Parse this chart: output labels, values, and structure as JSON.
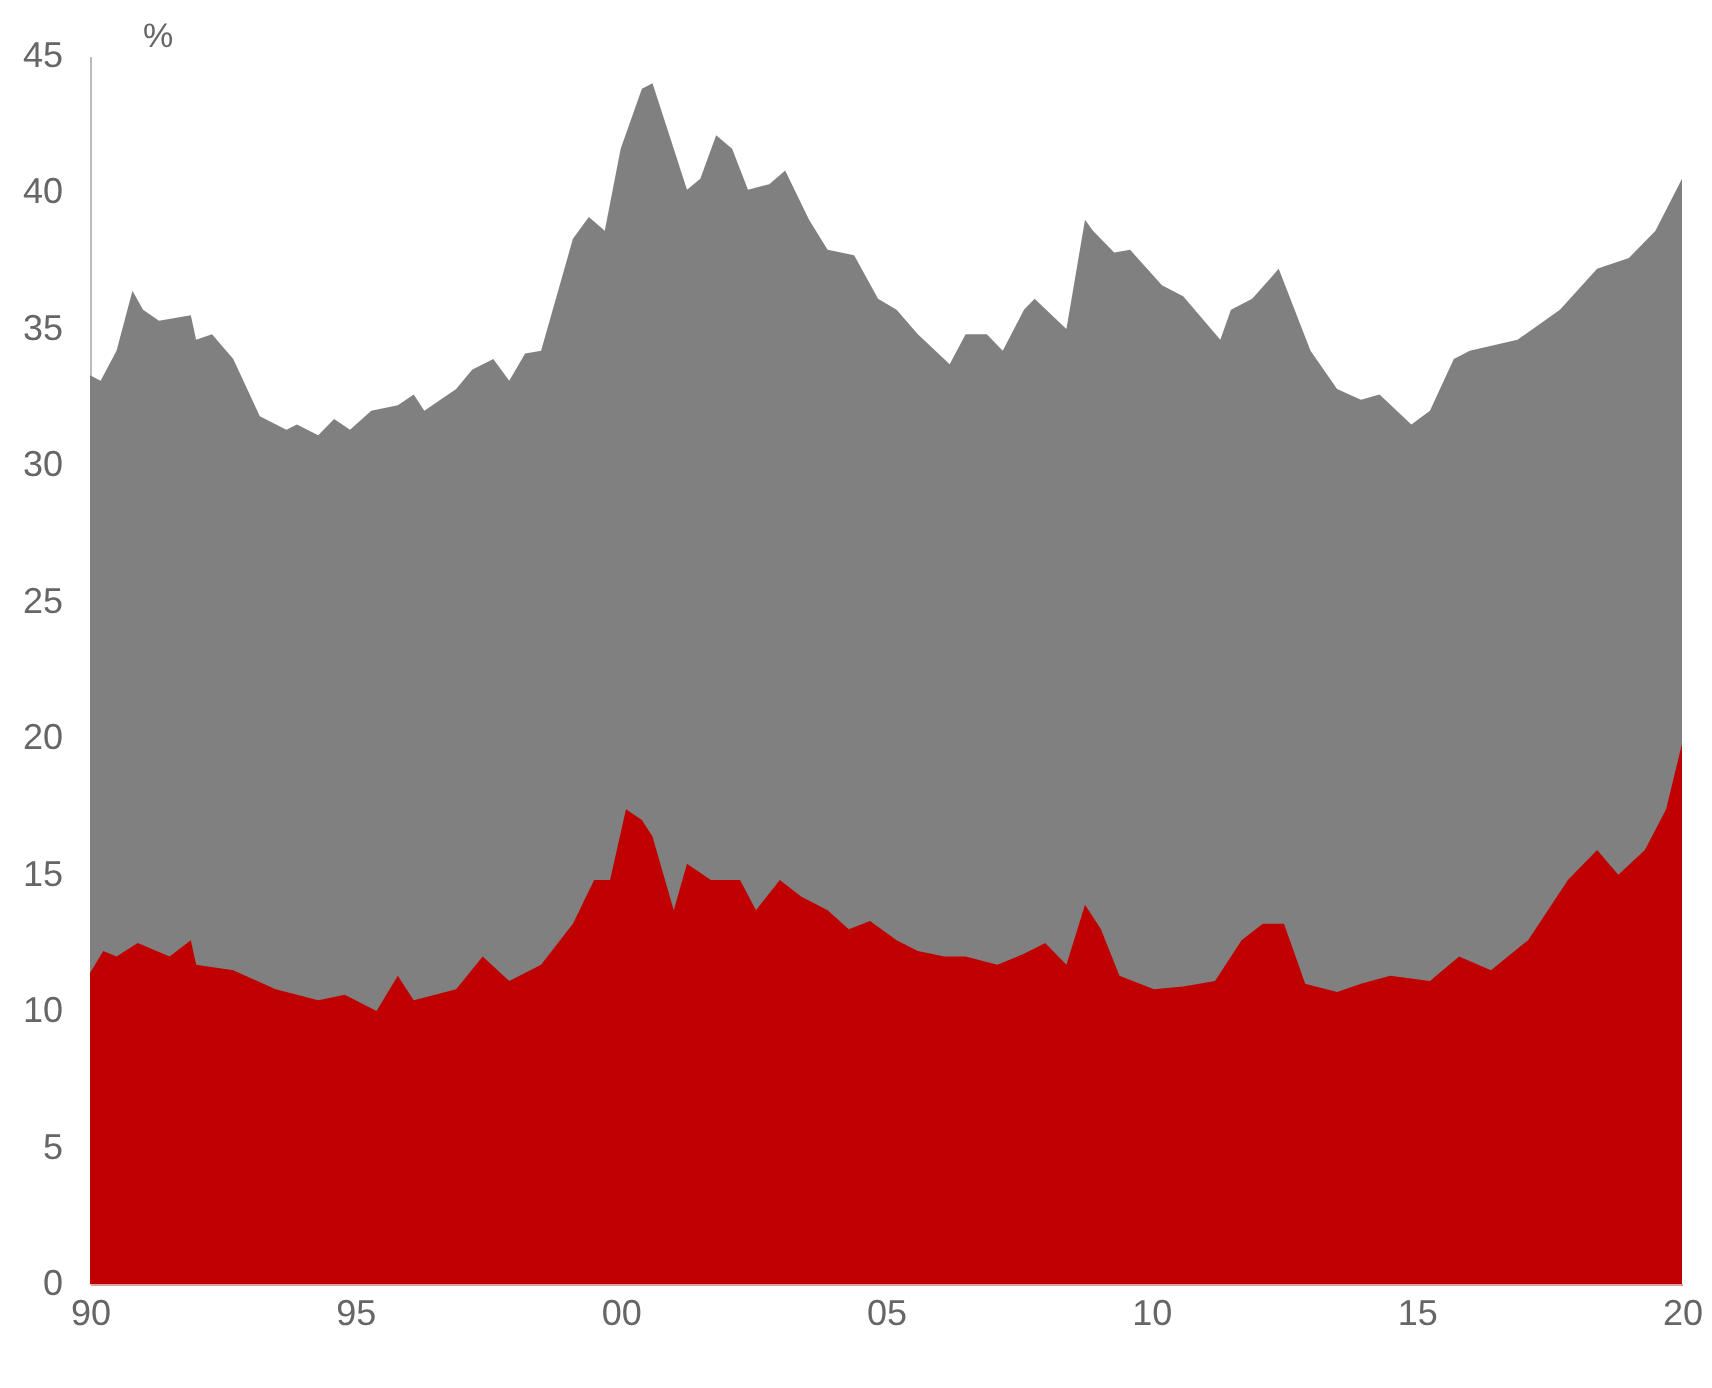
{
  "chart_data": {
    "type": "area",
    "ylabel": "%",
    "xlim": [
      1990,
      2020
    ],
    "xticks": [
      {
        "value": 1990,
        "label": "90"
      },
      {
        "value": 1995,
        "label": "95"
      },
      {
        "value": 2000,
        "label": "00"
      },
      {
        "value": 2005,
        "label": "05"
      },
      {
        "value": 2010,
        "label": "10"
      },
      {
        "value": 2015,
        "label": "15"
      },
      {
        "value": 2020,
        "label": "20"
      }
    ],
    "ylim": [
      0,
      45
    ],
    "yticks": [
      0,
      5,
      10,
      15,
      20,
      25,
      30,
      35,
      40,
      45
    ],
    "grid": false,
    "series": [
      {
        "color": "#808080",
        "x": [
          1990,
          1990.2,
          1990.5,
          1990.8,
          1991,
          1991.3,
          1991.9,
          1992,
          1992.3,
          1992.7,
          1993.2,
          1993.7,
          1993.9,
          1994.3,
          1994.6,
          1994.9,
          1995.3,
          1995.8,
          1996.1,
          1996.3,
          1996.9,
          1997.2,
          1997.6,
          1997.9,
          1998.2,
          1998.5,
          1999.1,
          1999.4,
          1999.7,
          2000,
          2000.4,
          2000.6,
          2000.95,
          2001.25,
          2001.5,
          2001.8,
          2002.1,
          2002.4,
          2002.8,
          2003.1,
          2003.55,
          2003.9,
          2004.4,
          2004.85,
          2005.2,
          2005.6,
          2006.2,
          2006.5,
          2006.9,
          2007.2,
          2007.6,
          2007.8,
          2008.4,
          2008.75,
          2008.9,
          2009.3,
          2009.6,
          2010.2,
          2010.6,
          2011.3,
          2011.5,
          2011.9,
          2012.4,
          2013,
          2013.5,
          2013.95,
          2014.3,
          2014.9,
          2015.25,
          2015.7,
          2016,
          2016.9,
          2017.7,
          2018.4,
          2019,
          2019.5,
          2020
        ],
        "values": [
          33.3,
          33.1,
          34.2,
          36.4,
          35.7,
          35.3,
          35.5,
          34.6,
          34.8,
          33.9,
          31.8,
          31.3,
          31.5,
          31.1,
          31.7,
          31.3,
          32,
          32.2,
          32.6,
          32,
          32.8,
          33.5,
          33.9,
          33.1,
          34.1,
          34.2,
          38.3,
          39.1,
          38.6,
          41.6,
          43.8,
          44,
          41.9,
          40.1,
          40.5,
          42.1,
          41.6,
          40.1,
          40.3,
          40.8,
          39,
          37.9,
          37.7,
          36.1,
          35.7,
          34.8,
          33.7,
          34.8,
          34.8,
          34.2,
          35.7,
          36.1,
          35,
          39,
          38.6,
          37.8,
          37.9,
          36.6,
          36.2,
          34.6,
          35.7,
          36.1,
          37.2,
          34.2,
          32.8,
          32.4,
          32.6,
          31.5,
          32,
          33.9,
          34.2,
          34.6,
          35.7,
          37.2,
          37.6,
          38.6,
          40.5
        ]
      },
      {
        "color": "#c00000",
        "x": [
          1990,
          1990.25,
          1990.5,
          1990.9,
          1991.5,
          1991.9,
          1992,
          1992.7,
          1993.5,
          1994.3,
          1994.8,
          1995.4,
          1995.8,
          1996.1,
          1996.9,
          1997.4,
          1997.9,
          1998.5,
          1999.1,
          1999.5,
          1999.8,
          2000.1,
          2000.4,
          2000.6,
          2001,
          2001.25,
          2001.7,
          2002.25,
          2002.55,
          2003,
          2003.4,
          2003.9,
          2004.3,
          2004.7,
          2005.2,
          2005.6,
          2006.1,
          2006.5,
          2007.1,
          2007.6,
          2008,
          2008.4,
          2008.75,
          2009.05,
          2009.4,
          2010.05,
          2010.6,
          2011.2,
          2011.7,
          2012.1,
          2012.5,
          2012.9,
          2013.5,
          2013.95,
          2014.5,
          2015.25,
          2015.8,
          2016.4,
          2017.1,
          2017.85,
          2018.4,
          2018.8,
          2019.3,
          2019.7,
          2020
        ],
        "values": [
          11.4,
          12.2,
          12,
          12.5,
          12,
          12.6,
          11.7,
          11.5,
          10.8,
          10.4,
          10.6,
          10,
          11.3,
          10.4,
          10.8,
          12,
          11.1,
          11.7,
          13.2,
          14.8,
          14.8,
          17.4,
          17,
          16.4,
          13.7,
          15.4,
          14.8,
          14.8,
          13.7,
          14.8,
          14.2,
          13.7,
          13,
          13.3,
          12.6,
          12.2,
          12,
          12,
          11.7,
          12.1,
          12.5,
          11.7,
          13.9,
          13,
          11.3,
          10.8,
          10.9,
          11.1,
          12.6,
          13.2,
          13.2,
          11,
          10.7,
          11,
          11.3,
          11.1,
          12,
          11.5,
          12.6,
          14.8,
          15.9,
          15,
          15.9,
          17.4,
          19.8
        ]
      }
    ]
  }
}
